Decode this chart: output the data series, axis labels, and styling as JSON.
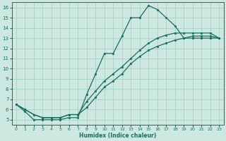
{
  "xlabel": "Humidex (Indice chaleur)",
  "xlim": [
    -0.5,
    23.5
  ],
  "ylim": [
    4.5,
    16.5
  ],
  "xticks": [
    0,
    1,
    2,
    3,
    4,
    5,
    6,
    7,
    8,
    9,
    10,
    11,
    12,
    13,
    14,
    15,
    16,
    17,
    18,
    19,
    20,
    21,
    22,
    23
  ],
  "yticks": [
    5,
    6,
    7,
    8,
    9,
    10,
    11,
    12,
    13,
    14,
    15,
    16
  ],
  "bg_color": "#cce8e0",
  "grid_color": "#a0ccc0",
  "line_color": "#1a6e60",
  "line1_x": [
    0,
    1,
    2,
    3,
    4,
    5,
    6,
    7,
    8,
    9,
    10,
    11,
    12,
    13,
    14,
    15,
    16,
    17,
    18,
    19,
    20,
    21,
    22,
    23
  ],
  "line1_y": [
    6.5,
    5.8,
    5.0,
    5.0,
    5.0,
    5.0,
    5.2,
    5.2,
    7.5,
    9.5,
    11.5,
    11.5,
    13.2,
    15.0,
    15.0,
    16.2,
    15.8,
    15.0,
    14.2,
    13.0,
    13.2,
    13.2,
    13.2,
    13.0
  ],
  "line2_x": [
    0,
    1,
    2,
    3,
    4,
    5,
    6,
    7,
    8,
    9,
    10,
    11,
    12,
    13,
    14,
    15,
    16,
    17,
    18,
    19,
    20,
    21,
    22,
    23
  ],
  "line2_y": [
    6.5,
    6.0,
    5.5,
    5.2,
    5.2,
    5.2,
    5.5,
    5.5,
    6.2,
    7.2,
    8.2,
    8.8,
    9.5,
    10.5,
    11.2,
    11.8,
    12.2,
    12.5,
    12.8,
    13.0,
    13.0,
    13.0,
    13.0,
    13.0
  ],
  "line3_x": [
    0,
    1,
    2,
    3,
    4,
    5,
    6,
    7,
    8,
    9,
    10,
    11,
    12,
    13,
    14,
    15,
    16,
    17,
    18,
    19,
    20,
    21,
    22,
    23
  ],
  "line3_y": [
    6.5,
    6.0,
    5.5,
    5.2,
    5.2,
    5.2,
    5.5,
    5.5,
    6.8,
    7.8,
    8.8,
    9.5,
    10.2,
    11.0,
    11.8,
    12.5,
    13.0,
    13.3,
    13.5,
    13.5,
    13.5,
    13.5,
    13.5,
    13.0
  ]
}
